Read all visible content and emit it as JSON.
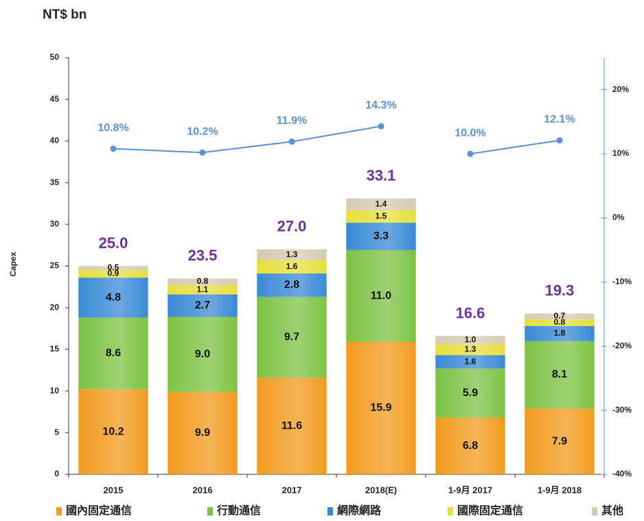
{
  "chart_data": {
    "type": "stacked_bar_line",
    "title": "NT$ bn",
    "y_label": "Capex",
    "categories": [
      "2015",
      "2016",
      "2017",
      "2018(E)",
      "1-9月 2017",
      "1-9月 2018"
    ],
    "series": [
      {
        "name": "國內固定通信",
        "color": "#f29b1e",
        "values": [
          10.2,
          9.9,
          11.6,
          15.9,
          6.8,
          7.9
        ],
        "value_labels": [
          "10.2",
          "9.9",
          "11.6",
          "15.9",
          "6.8",
          "7.9"
        ]
      },
      {
        "name": "行動通信",
        "color": "#7dc244",
        "values": [
          8.6,
          9.0,
          9.7,
          11.0,
          5.9,
          8.1
        ],
        "value_labels": [
          "8.6",
          "9.0",
          "9.7",
          "11.0",
          "5.9",
          "8.1"
        ]
      },
      {
        "name": "網際網路",
        "color": "#3a8ad6",
        "values": [
          4.8,
          2.7,
          2.8,
          3.3,
          1.6,
          1.8
        ],
        "value_labels": [
          "4.8",
          "2.7",
          "2.8",
          "3.3",
          "1.6",
          "1.8"
        ]
      },
      {
        "name": "國際固定通信",
        "color": "#e6df3c",
        "values": [
          0.9,
          1.1,
          1.6,
          1.5,
          1.3,
          0.8
        ],
        "value_labels": [
          "0.9",
          "1.1",
          "1.6",
          "1.5",
          "1.3",
          "0.8"
        ]
      },
      {
        "name": "其他",
        "color": "#d5cbb2",
        "values": [
          0.5,
          0.8,
          1.3,
          1.4,
          1.0,
          0.7
        ],
        "value_labels": [
          "0.5",
          "0.8",
          "1.3",
          "1.4",
          "1.0",
          "0.7"
        ]
      }
    ],
    "totals": [
      25.0,
      23.5,
      27.0,
      33.1,
      16.6,
      19.3
    ],
    "total_labels": [
      "25.0",
      "23.5",
      "27.0",
      "33.1",
      "16.6",
      "19.3"
    ],
    "total_color": "#7030a0",
    "lines": [
      {
        "color": "#5b8fd6",
        "axis": "y2",
        "values": [
          10.8,
          10.2,
          11.9,
          14.3,
          null,
          null
        ],
        "value_labels": [
          "10.8%",
          "10.2%",
          "11.9%",
          "14.3%",
          null,
          null
        ]
      },
      {
        "color": "#5b8fd6",
        "axis": "y2",
        "values": [
          null,
          null,
          null,
          null,
          10.0,
          12.1
        ],
        "value_labels": [
          null,
          null,
          null,
          null,
          "10.0%",
          "12.1%"
        ]
      }
    ],
    "ylim": [
      0,
      50
    ],
    "yticks": [
      0,
      5,
      10,
      15,
      20,
      25,
      30,
      35,
      40,
      45,
      50
    ],
    "y2lim": [
      -40,
      25
    ],
    "y2ticks": [
      {
        "value": -40,
        "label": "-40%"
      },
      {
        "value": -30,
        "label": "-30%"
      },
      {
        "value": -20,
        "label": "-20%"
      },
      {
        "value": -10,
        "label": "-10%"
      },
      {
        "value": 0,
        "label": "0%"
      },
      {
        "value": 10,
        "label": "10%"
      },
      {
        "value": 20,
        "label": "20%"
      }
    ],
    "legend": "bottom",
    "grid": false
  }
}
